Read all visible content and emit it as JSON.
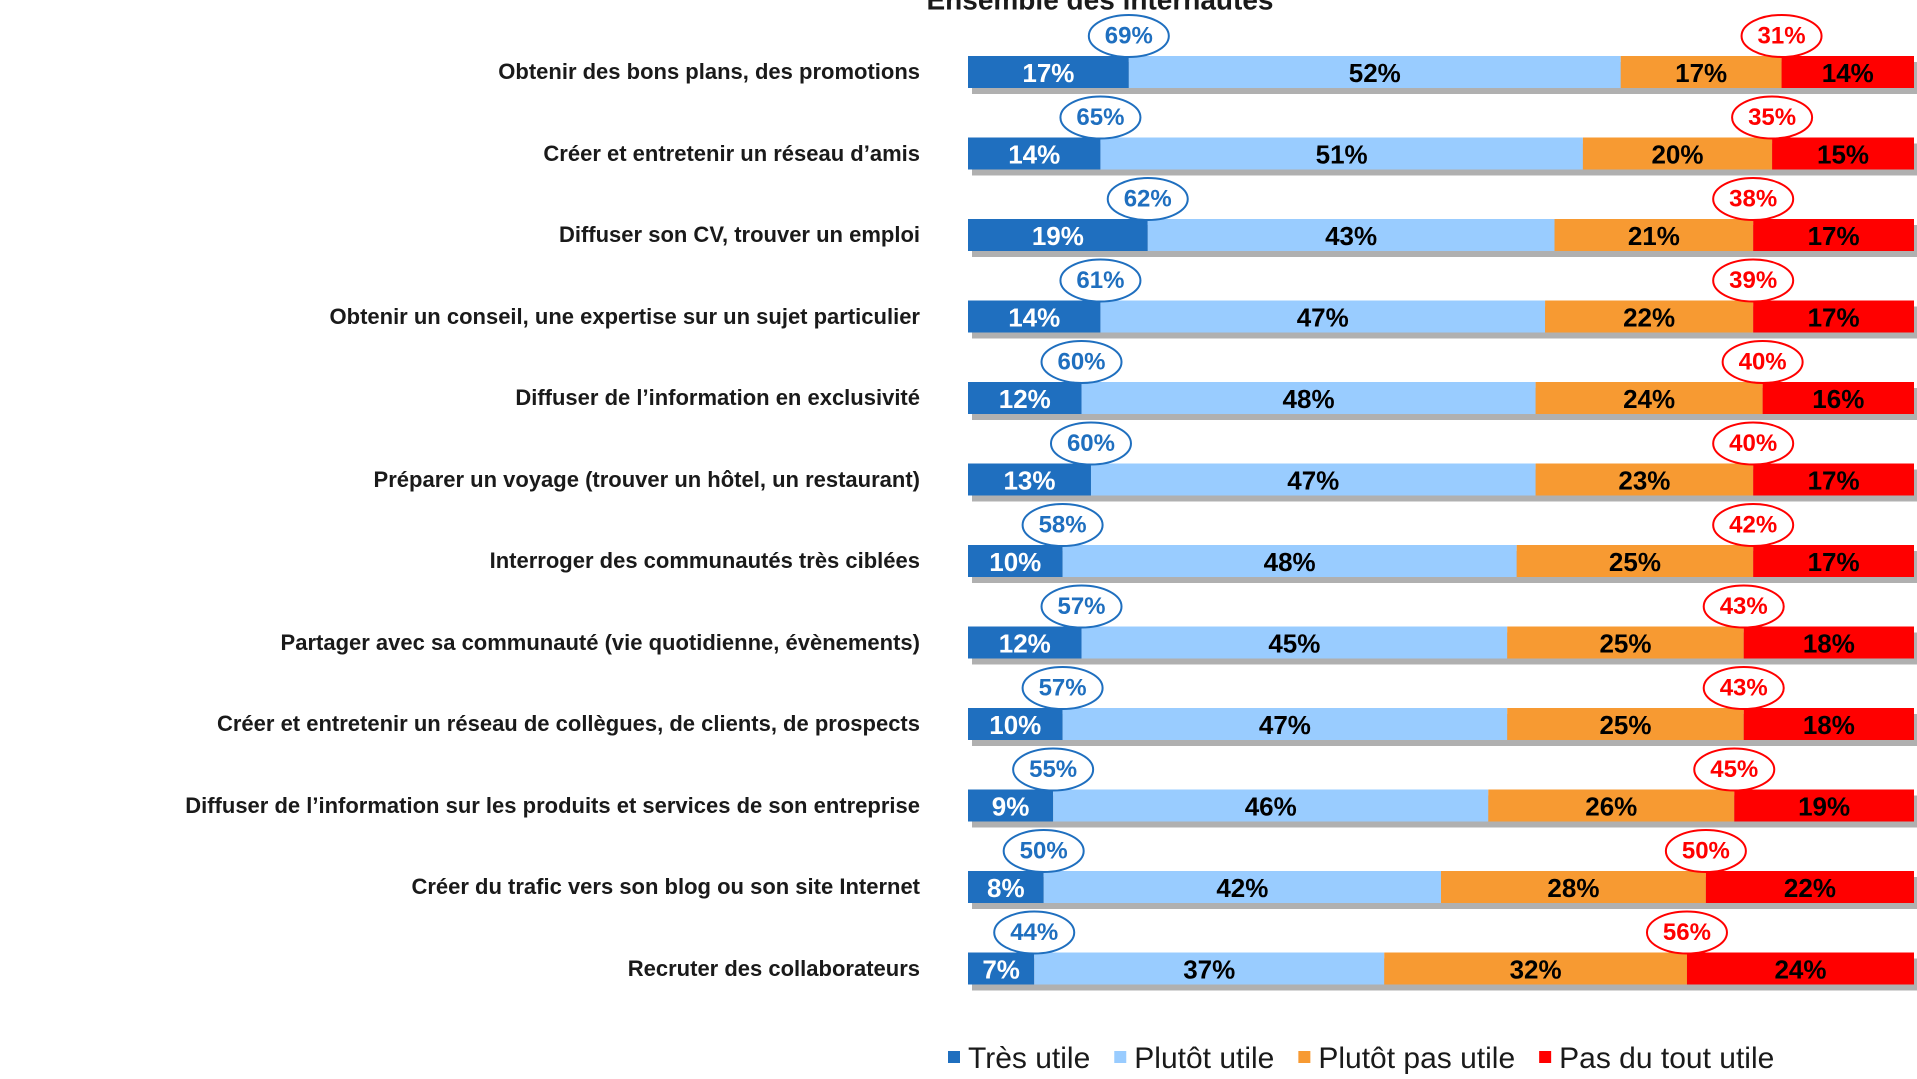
{
  "chart_data": {
    "type": "stacked_bar_horizontal",
    "title": "Ensemble des internautes",
    "categories": [
      "Obtenir des bons plans, des promotions",
      "Créer et entretenir un réseau d’amis",
      "Diffuser son CV, trouver un emploi",
      "Obtenir un conseil, une expertise sur un sujet particulier",
      "Diffuser de l’information en exclusivité",
      "Préparer un voyage (trouver un hôtel, un restaurant)",
      "Interroger des communautés très ciblées",
      "Partager avec sa communauté (vie quotidienne, évènements)",
      "Créer et entretenir un réseau de collègues, de clients, de prospects",
      "Diffuser de l’information sur les produits et services de son entreprise",
      "Créer du trafic vers son blog ou son site Internet",
      "Recruter des collaborateurs"
    ],
    "xlim": [
      0,
      100
    ],
    "series": [
      {
        "name": "Très utile",
        "color": "#1f6fbf",
        "label_color": "#ffffff",
        "values": [
          17,
          14,
          19,
          14,
          12,
          13,
          10,
          12,
          10,
          9,
          8,
          7
        ],
        "value_labels": [
          "17%",
          "14%",
          "19%",
          "14%",
          "12%",
          "13%",
          "10%",
          "12%",
          "10%",
          "9%",
          "8%",
          "7%"
        ]
      },
      {
        "name": "Plutôt utile",
        "color": "#99ccff",
        "label_color": "#000000",
        "values": [
          52,
          51,
          43,
          47,
          48,
          47,
          48,
          45,
          47,
          46,
          42,
          37
        ],
        "value_labels": [
          "52%",
          "51%",
          "43%",
          "47%",
          "48%",
          "47%",
          "48%",
          "45%",
          "47%",
          "46%",
          "42%",
          "37%"
        ]
      },
      {
        "name": "Plutôt pas utile",
        "color": "#f79a32",
        "label_color": "#000000",
        "values": [
          17,
          20,
          21,
          22,
          24,
          23,
          25,
          25,
          25,
          26,
          28,
          32
        ],
        "value_labels": [
          "17%",
          "20%",
          "21%",
          "22%",
          "24%",
          "23%",
          "25%",
          "25%",
          "25%",
          "26%",
          "28%",
          "32%"
        ]
      },
      {
        "name": "Pas du tout utile",
        "color": "#ff0000",
        "label_color": "#000000",
        "values": [
          14,
          15,
          17,
          17,
          16,
          17,
          17,
          18,
          18,
          19,
          22,
          24
        ],
        "value_labels": [
          "14%",
          "15%",
          "17%",
          "17%",
          "16%",
          "17%",
          "17%",
          "18%",
          "18%",
          "19%",
          "22%",
          "24%"
        ]
      }
    ],
    "totals": [
      {
        "after_series": 0,
        "color": "#1f6fbf",
        "values": [
          69,
          65,
          62,
          61,
          60,
          60,
          58,
          57,
          57,
          55,
          50,
          44
        ],
        "value_labels": [
          "69%",
          "65%",
          "62%",
          "61%",
          "60%",
          "60%",
          "58%",
          "57%",
          "57%",
          "55%",
          "50%",
          "44%"
        ]
      },
      {
        "after_series": 2,
        "color": "#ff0000",
        "values": [
          31,
          35,
          38,
          39,
          40,
          40,
          42,
          43,
          43,
          45,
          50,
          56
        ],
        "value_labels": [
          "31%",
          "35%",
          "38%",
          "39%",
          "40%",
          "40%",
          "42%",
          "43%",
          "43%",
          "45%",
          "50%",
          "56%"
        ]
      }
    ]
  }
}
